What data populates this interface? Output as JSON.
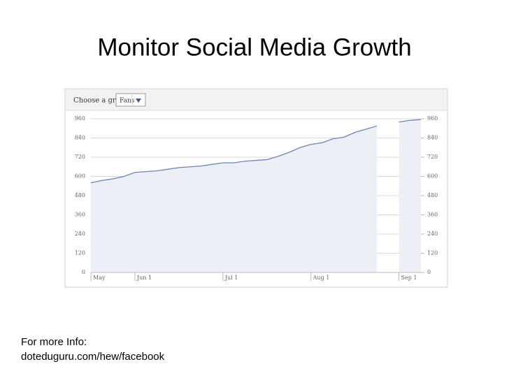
{
  "slide": {
    "title": "Monitor Social Media Growth",
    "footer": [
      "For more Info:",
      "doteduguru.com/hew/facebook"
    ]
  },
  "controls": {
    "label": "Choose a graph:",
    "selected": "Fans"
  },
  "chart_data": {
    "type": "area",
    "categories": [
      "May",
      null,
      null,
      null,
      "Jun 1",
      null,
      null,
      null,
      null,
      null,
      null,
      null,
      "Jul 1",
      null,
      null,
      null,
      null,
      null,
      null,
      null,
      "Aug 1",
      null,
      null,
      null,
      null,
      null,
      null,
      null,
      "Sep 1",
      null,
      null
    ],
    "series": [
      {
        "name": "Fans",
        "color": "#6d84b4",
        "values": [
          560,
          575,
          585,
          600,
          625,
          630,
          635,
          645,
          655,
          660,
          665,
          675,
          685,
          685,
          695,
          700,
          705,
          725,
          750,
          780,
          800,
          810,
          835,
          845,
          875,
          895,
          915,
          null,
          940,
          950,
          955
        ]
      }
    ],
    "ylim": [
      0,
      960
    ],
    "yticks": [
      0,
      120,
      240,
      360,
      480,
      600,
      720,
      840,
      960
    ],
    "y2lim": [
      0,
      960
    ],
    "y2ticks": [
      0,
      120,
      240,
      360,
      480,
      600,
      720,
      840,
      960
    ],
    "grid": true
  }
}
